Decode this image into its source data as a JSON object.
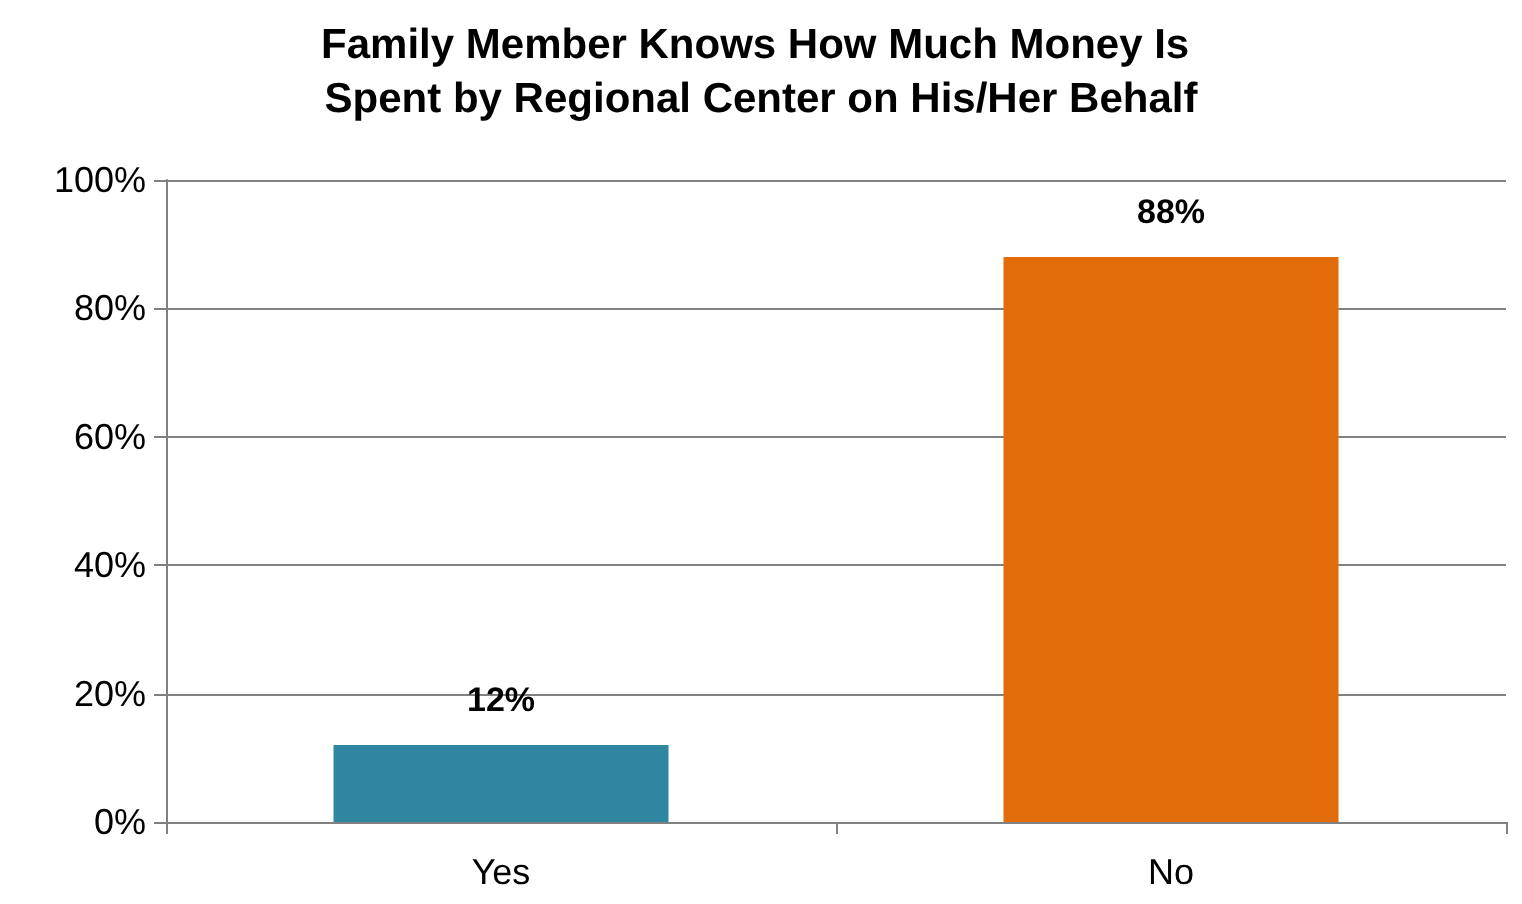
{
  "chart_data": {
    "type": "bar",
    "title": "Family Member Knows How Much Money Is Spent by Regional Center on His/Her Behalf",
    "categories": [
      "Yes",
      "No"
    ],
    "values": [
      12,
      88
    ],
    "colors": [
      "#2e86a0",
      "#e36c0a"
    ],
    "value_labels": [
      "12%",
      "88%"
    ],
    "ylim": [
      0,
      100
    ],
    "yticks": [
      {
        "value": 0,
        "label": "0%"
      },
      {
        "value": 20,
        "label": "20%"
      },
      {
        "value": 40,
        "label": "40%"
      },
      {
        "value": 60,
        "label": "60%"
      },
      {
        "value": 80,
        "label": "80%"
      },
      {
        "value": 100,
        "label": "100%"
      }
    ],
    "grid": "y"
  }
}
